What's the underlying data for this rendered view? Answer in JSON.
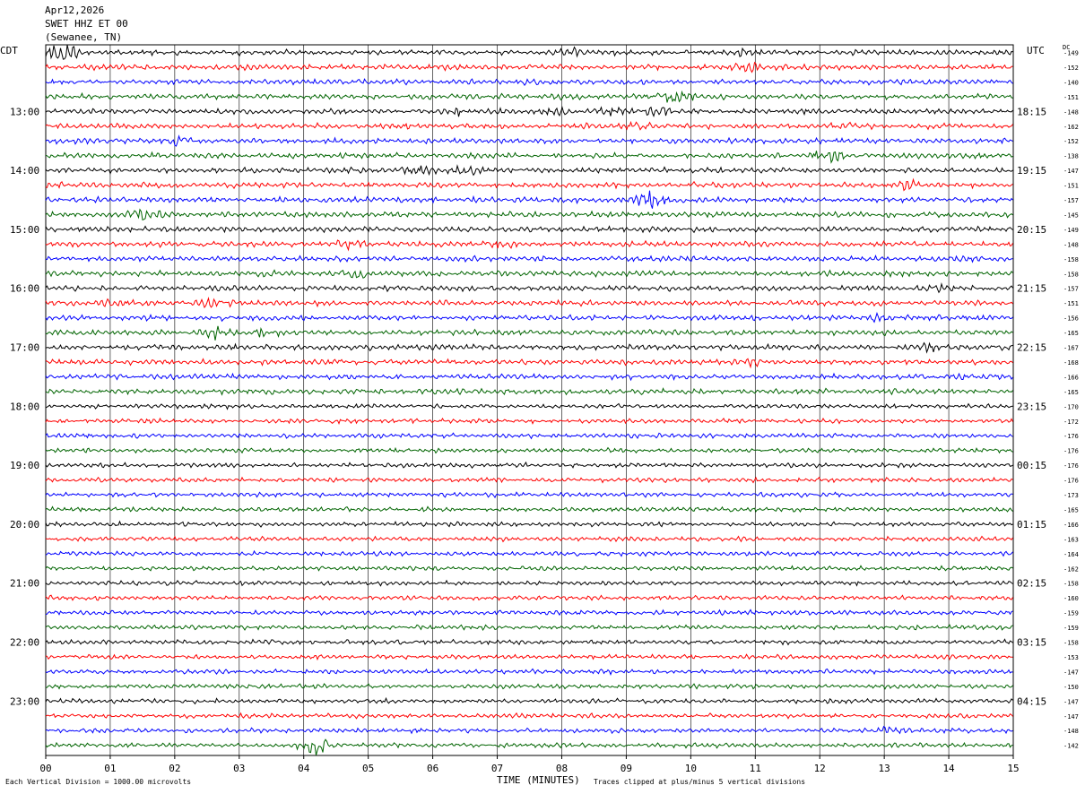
{
  "header": {
    "date": "Apr12,2026",
    "station": "SWET HHZ ET 00",
    "location": "(Sewanee, TN)"
  },
  "labels": {
    "left_tz": "CDT",
    "right_tz": "UTC",
    "dc": "DC"
  },
  "footer": {
    "scale_note": "Each Vertical Division = 1000.00 microvolts",
    "xlabel": "TIME (MINUTES)",
    "clip_note": "Traces clipped at plus/minus 5 vertical divisions"
  },
  "chart_data": {
    "type": "line",
    "title": "SWET HHZ ET 00 (Sewanee, TN) Apr12,2026",
    "xlabel": "TIME (MINUTES)",
    "x_ticks": [
      "00",
      "01",
      "02",
      "03",
      "04",
      "05",
      "06",
      "07",
      "08",
      "09",
      "10",
      "11",
      "12",
      "13",
      "14",
      "15"
    ],
    "xlim": [
      0,
      15
    ],
    "trace_colors": [
      "#000000",
      "#ff0000",
      "#0000ff",
      "#006400"
    ],
    "left_hour_labels": [
      "13:00",
      "14:00",
      "15:00",
      "16:00",
      "17:00",
      "18:00",
      "19:00",
      "20:00",
      "21:00",
      "22:00",
      "23:00"
    ],
    "right_hour_labels": [
      "18:15",
      "19:15",
      "20:15",
      "21:15",
      "22:15",
      "23:15",
      "00:15",
      "01:15",
      "02:15",
      "03:15",
      "04:15"
    ],
    "dc_offsets": [
      -149,
      -152,
      -140,
      -151,
      -148,
      -162,
      -152,
      -138,
      -147,
      -151,
      -157,
      -145,
      -149,
      -148,
      -158,
      -158,
      -157,
      -151,
      -156,
      -165,
      -167,
      -168,
      -166,
      -165,
      -170,
      -172,
      -176,
      -176,
      -176,
      -176,
      -173,
      -165,
      -166,
      -163,
      -164,
      -162,
      -158,
      -160,
      -159,
      -159,
      -158,
      -153,
      -147,
      -150,
      -147,
      -147,
      -148,
      -142
    ],
    "events": [
      {
        "trace": 0,
        "minute": 0.25,
        "amplitude": 3.5
      },
      {
        "trace": 0,
        "minute": 8.1,
        "amplitude": 1.5
      },
      {
        "trace": 0,
        "minute": 10.8,
        "amplitude": 0.8
      },
      {
        "trace": 1,
        "minute": 10.85,
        "amplitude": 2.0
      },
      {
        "trace": 3,
        "minute": 9.75,
        "amplitude": 2.2
      },
      {
        "trace": 4,
        "minute": 6.4,
        "amplitude": 1.2
      },
      {
        "trace": 4,
        "minute": 7.9,
        "amplitude": 1.3
      },
      {
        "trace": 4,
        "minute": 8.8,
        "amplitude": 1.3
      },
      {
        "trace": 4,
        "minute": 9.5,
        "amplitude": 1.3
      },
      {
        "trace": 5,
        "minute": 9.2,
        "amplitude": 1.2
      },
      {
        "trace": 5,
        "minute": 12.4,
        "amplitude": 1.0
      },
      {
        "trace": 6,
        "minute": 2.0,
        "amplitude": 1.5
      },
      {
        "trace": 7,
        "minute": 12.1,
        "amplitude": 2.2
      },
      {
        "trace": 8,
        "minute": 5.8,
        "amplitude": 1.5
      },
      {
        "trace": 8,
        "minute": 6.6,
        "amplitude": 1.4
      },
      {
        "trace": 9,
        "minute": 13.4,
        "amplitude": 1.6
      },
      {
        "trace": 10,
        "minute": 9.35,
        "amplitude": 3.2
      },
      {
        "trace": 11,
        "minute": 1.55,
        "amplitude": 2.0
      },
      {
        "trace": 13,
        "minute": 4.7,
        "amplitude": 1.0
      },
      {
        "trace": 13,
        "minute": 7.0,
        "amplitude": 1.0
      },
      {
        "trace": 15,
        "minute": 3.5,
        "amplitude": 1.0
      },
      {
        "trace": 15,
        "minute": 4.8,
        "amplitude": 1.2
      },
      {
        "trace": 16,
        "minute": 13.8,
        "amplitude": 1.2
      },
      {
        "trace": 17,
        "minute": 1.0,
        "amplitude": 1.0
      },
      {
        "trace": 17,
        "minute": 2.6,
        "amplitude": 1.0
      },
      {
        "trace": 18,
        "minute": 12.9,
        "amplitude": 1.0
      },
      {
        "trace": 19,
        "minute": 2.6,
        "amplitude": 1.8
      },
      {
        "trace": 19,
        "minute": 3.4,
        "amplitude": 1.5
      },
      {
        "trace": 20,
        "minute": 13.7,
        "amplitude": 0.8
      },
      {
        "trace": 21,
        "minute": 11.0,
        "amplitude": 0.8
      },
      {
        "trace": 46,
        "minute": 13.1,
        "amplitude": 1.5
      },
      {
        "trace": 47,
        "minute": 4.2,
        "amplitude": 3.2
      }
    ]
  }
}
